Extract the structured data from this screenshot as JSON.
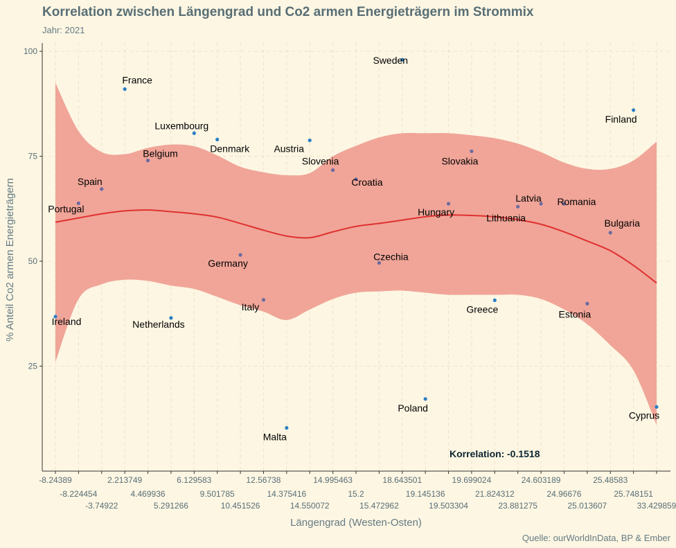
{
  "chart_data": {
    "type": "scatter",
    "title": "Korrelation zwischen Längengrad und Co2 armen Energieträgern im Strommix",
    "subtitle": "Jahr: 2021",
    "xlabel": "Längengrad (Westen-Osten)",
    "ylabel": "% Anteil Co2 armen Energieträgern",
    "caption": "Quelle: ourWorldInData, BP & Ember",
    "annotation": {
      "label": "Korrelation:",
      "value": "-0.1518"
    },
    "x_categories": [
      "-8.24389",
      "-8.224454",
      "-3.74922",
      "2.213749",
      "4.469936",
      "5.291266",
      "6.129583",
      "9.501785",
      "10.451526",
      "12.56738",
      "14.375416",
      "14.550072",
      "14.995463",
      "15.2",
      "15.472962",
      "18.643501",
      "19.145136",
      "19.503304",
      "19.699024",
      "21.824312",
      "23.881275",
      "24.603189",
      "24.96676",
      "25.013607",
      "25.48583",
      "25.748151",
      "33.429859"
    ],
    "ylim": [
      0,
      102
    ],
    "y_ticks": [
      25,
      50,
      75,
      100
    ],
    "grid": true,
    "points": [
      {
        "name": "Ireland",
        "x": "-8.24389",
        "y": 36.8,
        "color": "#2a7fc4"
      },
      {
        "name": "Portugal",
        "x": "-8.224454",
        "y": 63.8,
        "color": "#6a6aa0"
      },
      {
        "name": "Spain",
        "x": "-3.74922",
        "y": 67.2,
        "color": "#6a6aa0"
      },
      {
        "name": "France",
        "x": "2.213749",
        "y": 91.0,
        "color": "#2a7fc4"
      },
      {
        "name": "Belgium",
        "x": "4.469936",
        "y": 74.0,
        "color": "#6a6aa0"
      },
      {
        "name": "Netherlands",
        "x": "5.291266",
        "y": 36.5,
        "color": "#2a7fc4"
      },
      {
        "name": "Luxembourg",
        "x": "6.129583",
        "y": 80.5,
        "color": "#2a7fc4"
      },
      {
        "name": "Denmark",
        "x": "9.501785",
        "y": 79.0,
        "color": "#2a7fc4"
      },
      {
        "name": "Germany",
        "x": "10.451526",
        "y": 51.5,
        "color": "#6a6aa0"
      },
      {
        "name": "Italy",
        "x": "12.56738",
        "y": 40.8,
        "color": "#6a6aa0"
      },
      {
        "name": "Malta",
        "x": "14.375416",
        "y": 10.3,
        "color": "#2a7fc4"
      },
      {
        "name": "Austria",
        "x": "14.550072",
        "y": 78.8,
        "color": "#2a7fc4"
      },
      {
        "name": "Slovenia",
        "x": "14.995463",
        "y": 71.7,
        "color": "#6a6aa0"
      },
      {
        "name": "Croatia",
        "x": "15.2",
        "y": 69.5,
        "color": "#6a6aa0"
      },
      {
        "name": "Czechia",
        "x": "15.472962",
        "y": 49.6,
        "color": "#6a6aa0"
      },
      {
        "name": "Sweden",
        "x": "18.643501",
        "y": 98.0,
        "color": "#2a7fc4"
      },
      {
        "name": "Poland",
        "x": "19.145136",
        "y": 17.2,
        "color": "#2a7fc4"
      },
      {
        "name": "Hungary",
        "x": "19.503304",
        "y": 63.7,
        "color": "#6a6aa0"
      },
      {
        "name": "Slovakia",
        "x": "19.699024",
        "y": 76.2,
        "color": "#6a6aa0"
      },
      {
        "name": "Greece",
        "x": "21.824312",
        "y": 40.7,
        "color": "#2a7fc4"
      },
      {
        "name": "Lithuania",
        "x": "23.881275",
        "y": 63.0,
        "color": "#6a6aa0"
      },
      {
        "name": "Latvia",
        "x": "24.603189",
        "y": 63.7,
        "color": "#6a6aa0"
      },
      {
        "name": "Romania",
        "x": "24.96676",
        "y": 63.7,
        "color": "#6a6aa0"
      },
      {
        "name": "Estonia",
        "x": "25.013607",
        "y": 39.9,
        "color": "#6a6aa0"
      },
      {
        "name": "Bulgaria",
        "x": "25.48583",
        "y": 56.8,
        "color": "#6a6aa0"
      },
      {
        "name": "Finland",
        "x": "25.748151",
        "y": 86.0,
        "color": "#2a7fc4"
      },
      {
        "name": "Cyprus",
        "x": "33.429859",
        "y": 15.3,
        "color": "#2a7fc4"
      }
    ],
    "smooth": {
      "method": "loess",
      "line_color": "#e03030",
      "band_color": "#ee9c8f",
      "fit": [
        59.3,
        60.3,
        61.3,
        62.0,
        62.2,
        61.8,
        61.3,
        60.5,
        59.0,
        57.4,
        56.0,
        55.6,
        57.0,
        58.3,
        59.0,
        59.8,
        60.6,
        61.0,
        60.9,
        60.6,
        59.9,
        58.8,
        57.0,
        54.8,
        52.5,
        49.0,
        44.8
      ],
      "upper": [
        92.5,
        81.0,
        76.0,
        75.5,
        77.0,
        77.8,
        77.4,
        75.2,
        72.5,
        71.2,
        70.5,
        71.0,
        75.0,
        77.5,
        79.5,
        80.5,
        80.5,
        80.5,
        80.0,
        79.3,
        78.0,
        76.0,
        73.5,
        72.0,
        72.0,
        74.0,
        78.5
      ],
      "lower": [
        26.0,
        41.0,
        44.5,
        45.6,
        45.3,
        44.2,
        43.4,
        41.5,
        39.5,
        38.0,
        36.0,
        38.5,
        41.0,
        42.5,
        42.8,
        43.0,
        42.5,
        42.0,
        42.0,
        42.0,
        42.0,
        41.0,
        38.5,
        35.0,
        30.0,
        24.0,
        11.0
      ]
    }
  },
  "labels": {
    "Ireland": "Ireland",
    "Portugal": "Portugal",
    "Spain": "Spain",
    "France": "France",
    "Belgium": "Belgium",
    "Netherlands": "Netherlands",
    "Luxembourg": "Luxembourg",
    "Denmark": "Denmark",
    "Germany": "Germany",
    "Italy": "Italy",
    "Malta": "Malta",
    "Austria": "Austria",
    "Slovenia": "Slovenia",
    "Croatia": "Croatia",
    "Czechia": "Czechia",
    "Sweden": "Sweden",
    "Poland": "Poland",
    "Hungary": "Hungary",
    "Slovakia": "Slovakia",
    "Greece": "Greece",
    "Lithuania": "Lithuania",
    "Latvia": "Latvia",
    "Romania": "Romania",
    "Estonia": "Estonia",
    "Bulgaria": "Bulgaria",
    "Finland": "Finland",
    "Cyprus": "Cyprus"
  }
}
